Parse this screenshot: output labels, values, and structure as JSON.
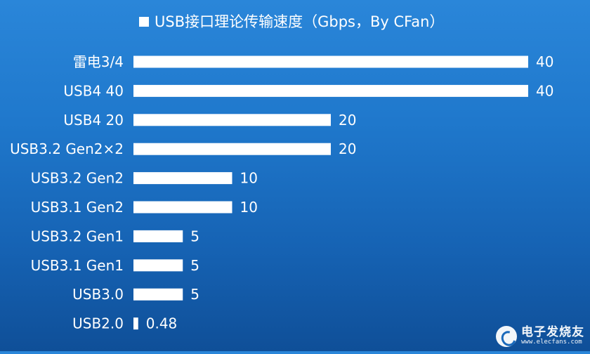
{
  "chart_data": {
    "type": "bar",
    "orientation": "horizontal",
    "title": "USB接口理论传输速度（Gbps，By CFan）",
    "legend_position": "top",
    "categories": [
      "雷电3/4",
      "USB4 40",
      "USB4 20",
      "USB3.2 Gen2×2",
      "USB3.2 Gen2",
      "USB3.1 Gen2",
      "USB3.2 Gen1",
      "USB3.1 Gen1",
      "USB3.0",
      "USB2.0"
    ],
    "values": [
      40,
      40,
      20,
      20,
      10,
      10,
      5,
      5,
      5,
      0.48
    ],
    "value_labels": [
      "40",
      "40",
      "20",
      "20",
      "10",
      "10",
      "5",
      "5",
      "5",
      "0.48"
    ],
    "xlim": [
      0,
      40
    ],
    "grid": false,
    "bar_color": "#ffffff",
    "text_color": "#ffffff",
    "background_color": "#1f76c9"
  },
  "watermark": {
    "name": "电子发烧友",
    "url": "www.elecfans.com"
  }
}
